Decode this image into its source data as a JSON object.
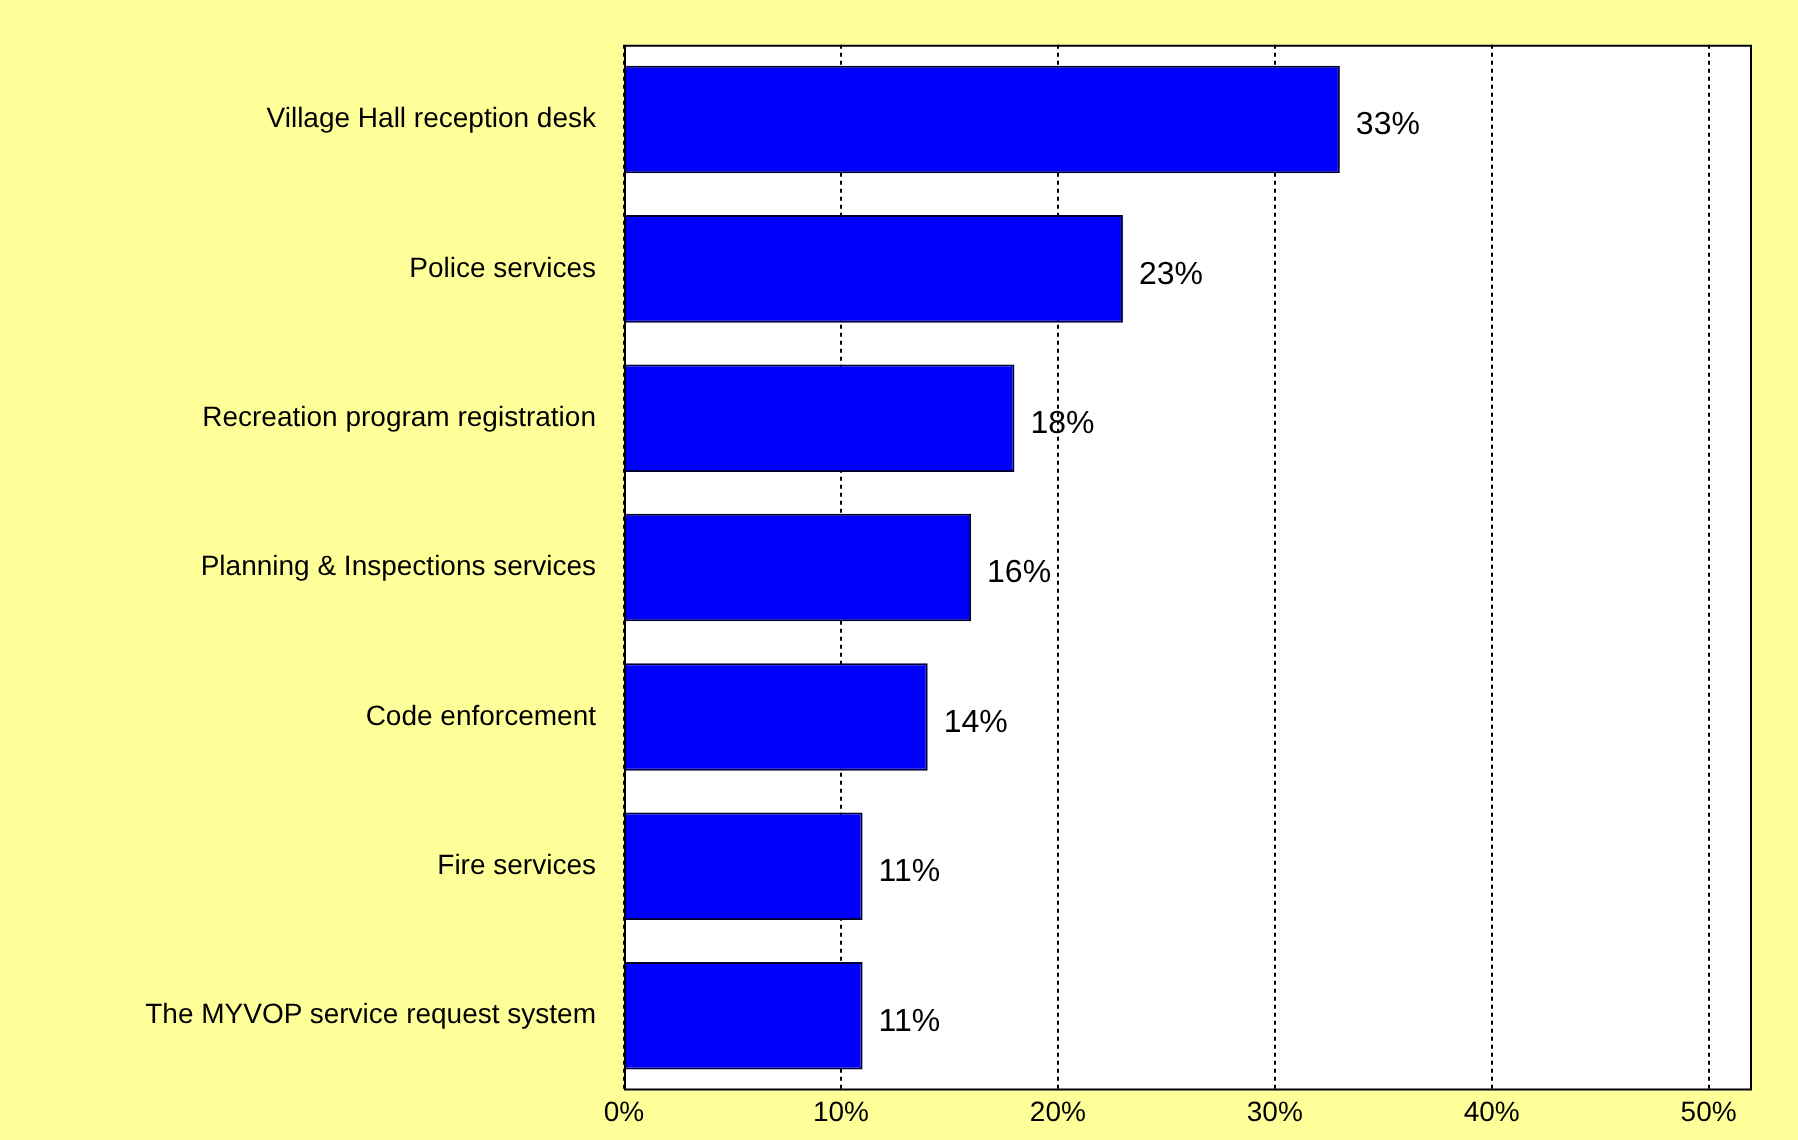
{
  "chart_data": {
    "type": "bar",
    "orientation": "horizontal",
    "categories": [
      "Village Hall reception desk",
      "Police services",
      "Recreation program registration",
      "Planning & Inspections services",
      "Code enforcement",
      "Fire services",
      "The MYVOP service request system"
    ],
    "values": [
      33,
      23,
      18,
      16,
      14,
      11,
      11
    ],
    "color": "#0000ff",
    "xlim": [
      0,
      52
    ],
    "xticks": [
      {
        "value": 0,
        "label": "0%"
      },
      {
        "value": 10,
        "label": "10%"
      },
      {
        "value": 20,
        "label": "20%"
      },
      {
        "value": 30,
        "label": "30%"
      },
      {
        "value": 40,
        "label": "40%"
      },
      {
        "value": 50,
        "label": "50%"
      }
    ],
    "value_labels": [
      "33%",
      "23%",
      "18%",
      "16%",
      "14%",
      "11%",
      "11%"
    ],
    "grid": "x",
    "legend": false
  }
}
